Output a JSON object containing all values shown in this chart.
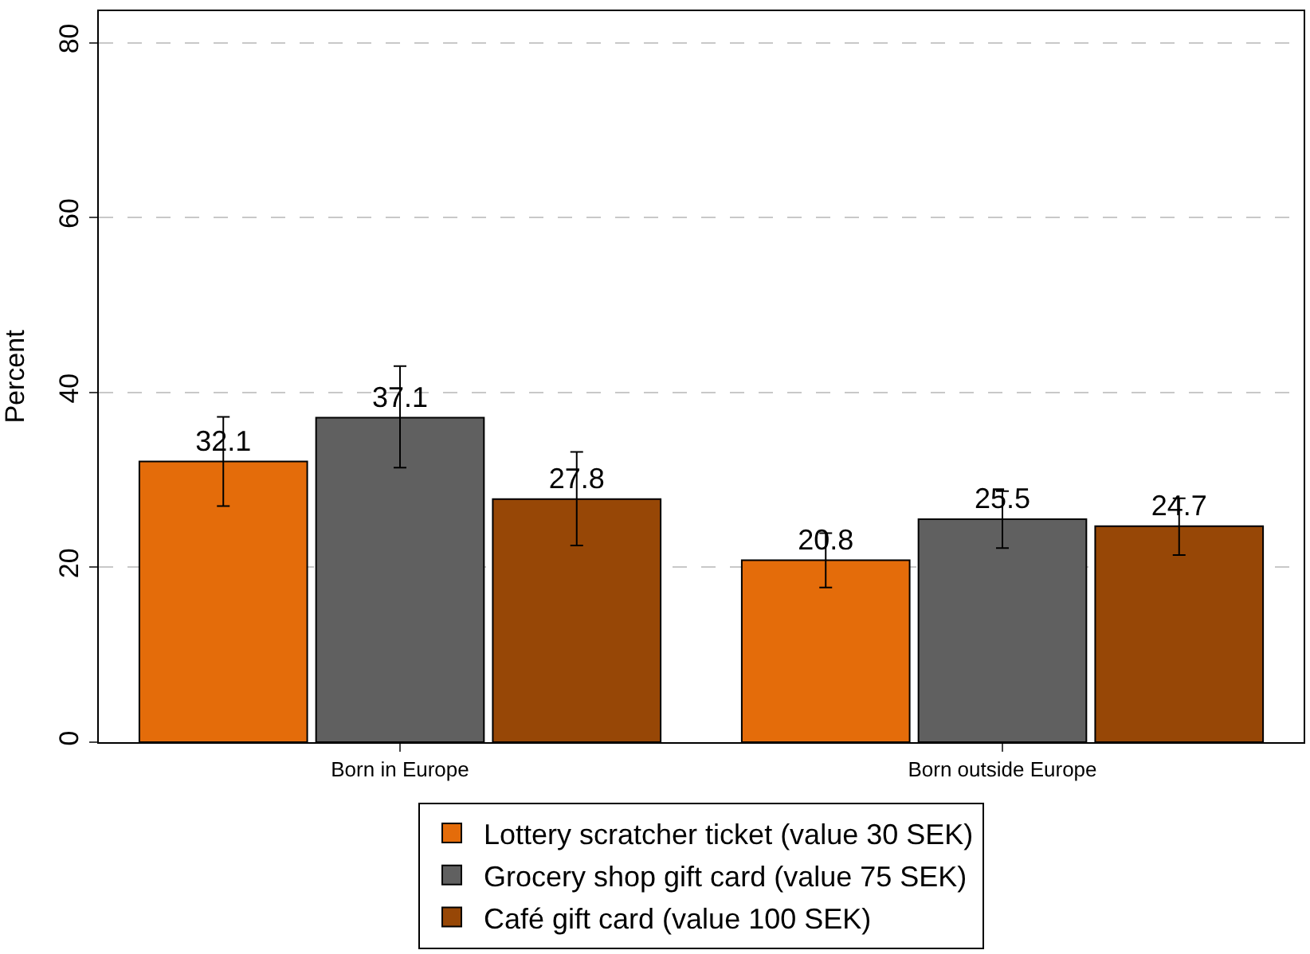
{
  "chart_data": {
    "type": "bar",
    "ylabel": "Percent",
    "categories": [
      "Born in Europe",
      "Born outside Europe"
    ],
    "series": [
      {
        "name": "Lottery scratcher ticket (value 30 SEK)",
        "color": "#e46c0a",
        "values": [
          32.1,
          20.8
        ],
        "errors": [
          [
            27.0,
            37.2
          ],
          [
            17.7,
            23.9
          ]
        ]
      },
      {
        "name": "Grocery shop gift card (value 75 SEK)",
        "color": "#606060",
        "values": [
          37.1,
          25.5
        ],
        "errors": [
          [
            31.4,
            43.0
          ],
          [
            22.2,
            28.7
          ]
        ]
      },
      {
        "name": "Café gift card (value 100 SEK)",
        "color": "#974706",
        "values": [
          27.8,
          24.7
        ],
        "errors": [
          [
            22.5,
            33.2
          ],
          [
            21.4,
            27.9
          ]
        ]
      }
    ],
    "ylim": [
      0,
      83.6
    ],
    "yticks": [
      0,
      20,
      40,
      60,
      80
    ],
    "grid": "y",
    "legend": "bottom",
    "data_labels": true
  }
}
